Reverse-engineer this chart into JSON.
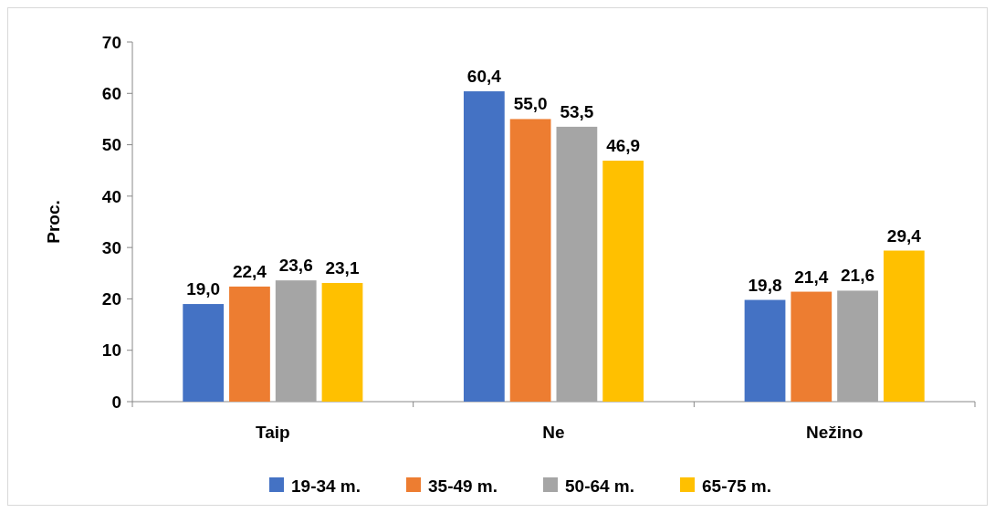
{
  "chart_data": {
    "type": "bar",
    "ylabel": "Proc.",
    "categories": [
      "Taip",
      "Ne",
      "Nežino"
    ],
    "series": [
      {
        "name": "19-34 m.",
        "color": "#4472c4",
        "values": [
          19.0,
          60.4,
          19.8
        ],
        "value_labels": [
          "19,0",
          "60,4",
          "19,8"
        ]
      },
      {
        "name": "35-49 m.",
        "color": "#ed7d31",
        "values": [
          22.4,
          55.0,
          21.4
        ],
        "value_labels": [
          "22,4",
          "55,0",
          "21,4"
        ]
      },
      {
        "name": "50-64 m.",
        "color": "#a5a5a5",
        "values": [
          23.6,
          53.5,
          21.6
        ],
        "value_labels": [
          "23,6",
          "53,5",
          "21,6"
        ]
      },
      {
        "name": "65-75 m.",
        "color": "#ffc000",
        "values": [
          23.1,
          46.9,
          29.4
        ],
        "value_labels": [
          "23,1",
          "46,9",
          "29,4"
        ]
      }
    ],
    "ylim": [
      0,
      70
    ],
    "yticks": [
      0,
      10,
      20,
      30,
      40,
      50,
      60,
      70
    ],
    "grid": false,
    "legend": "bottom"
  }
}
